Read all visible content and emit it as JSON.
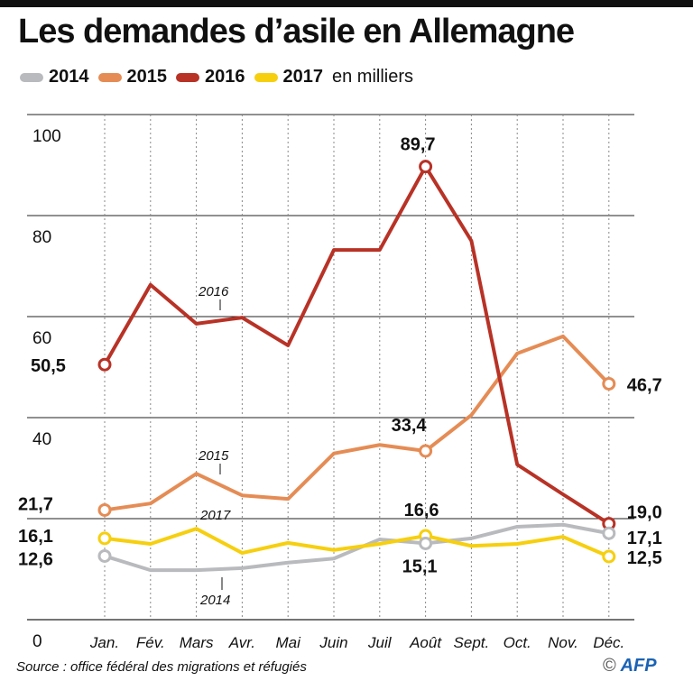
{
  "title": "Les demandes d’asile en Allemagne",
  "legend": {
    "items": [
      {
        "label": "2014",
        "color": "#b9babd"
      },
      {
        "label": "2015",
        "color": "#e58c55"
      },
      {
        "label": "2016",
        "color": "#b83226"
      },
      {
        "label": "2017",
        "color": "#f6cf0f"
      }
    ],
    "unit": "en milliers"
  },
  "chart_data": {
    "type": "line",
    "title": "Les demandes d’asile en Allemagne",
    "ylabel": "en milliers",
    "ylim": [
      0,
      100
    ],
    "yticks": [
      "0",
      "40",
      "60",
      "80",
      "100"
    ],
    "grid": true,
    "legend_placement": "top-left",
    "categories": [
      "Jan.",
      "Fév.",
      "Mars",
      "Avr.",
      "Mai",
      "Juin",
      "Juil",
      "Août",
      "Sept.",
      "Oct.",
      "Nov.",
      "Déc."
    ],
    "series": [
      {
        "name": "2014",
        "color": "#b9babd",
        "values": [
          12.6,
          9.8,
          9.8,
          10.2,
          11.3,
          12.1,
          15.9,
          15.1,
          16.1,
          18.4,
          18.8,
          17.1
        ]
      },
      {
        "name": "2015",
        "color": "#e58c55",
        "values": [
          21.7,
          23.0,
          28.9,
          24.6,
          23.9,
          32.9,
          34.6,
          33.4,
          40.5,
          52.7,
          56.1,
          46.7
        ]
      },
      {
        "name": "2016",
        "color": "#b83226",
        "values": [
          50.5,
          66.3,
          58.6,
          59.8,
          54.3,
          73.2,
          73.2,
          89.7,
          75.0,
          30.7,
          24.8,
          19.0
        ]
      },
      {
        "name": "2017",
        "color": "#f6cf0f",
        "values": [
          16.1,
          15.0,
          18.0,
          13.2,
          15.2,
          13.8,
          15.0,
          16.6,
          14.6,
          15.0,
          16.4,
          12.5
        ]
      }
    ],
    "data_labels": [
      {
        "series": "2016",
        "month": "Jan.",
        "text": "50,5"
      },
      {
        "series": "2016",
        "month": "Août",
        "text": "89,7"
      },
      {
        "series": "2016",
        "month": "Déc.",
        "text": "19,0"
      },
      {
        "series": "2015",
        "month": "Jan.",
        "text": "21,7"
      },
      {
        "series": "2015",
        "month": "Août",
        "text": "33,4"
      },
      {
        "series": "2015",
        "month": "Déc.",
        "text": "46,7"
      },
      {
        "series": "2017",
        "month": "Jan.",
        "text": "16,1"
      },
      {
        "series": "2017",
        "month": "Août",
        "text": "16,6"
      },
      {
        "series": "2017",
        "month": "Déc.",
        "text": "12,5"
      },
      {
        "series": "2014",
        "month": "Jan.",
        "text": "12,6"
      },
      {
        "series": "2014",
        "month": "Août",
        "text": "15,1"
      },
      {
        "series": "2014",
        "month": "Déc.",
        "text": "17,1"
      }
    ],
    "annotations": [
      {
        "text": "2016",
        "month": "Avr.",
        "series": "2016"
      },
      {
        "text": "2015",
        "month": "Avr.",
        "series": "2015"
      },
      {
        "text": "2017",
        "month": "Avr.",
        "series": "2017"
      },
      {
        "text": "2014",
        "month": "Avr.",
        "series": "2014"
      }
    ]
  },
  "source": "Source : office fédéral des migrations et réfugiés",
  "credit": {
    "symbol": "©",
    "logo": "AFP"
  }
}
